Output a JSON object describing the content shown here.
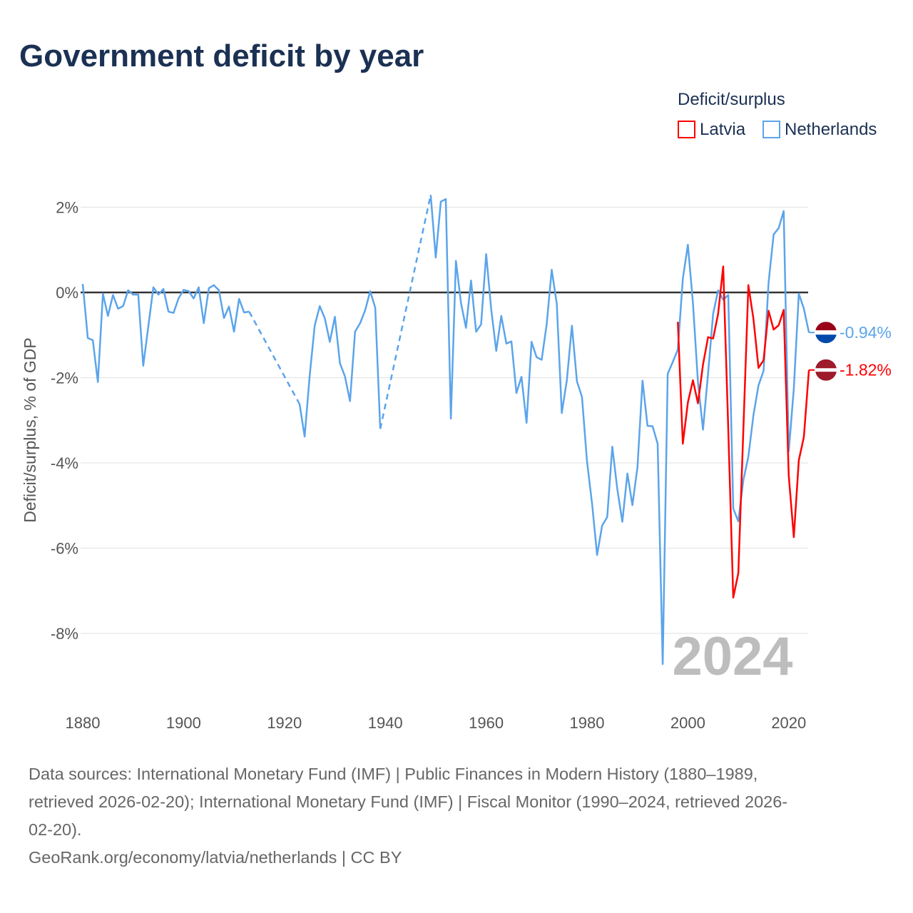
{
  "chart_data": {
    "type": "line",
    "title": "Government deficit by year",
    "xlabel": "",
    "ylabel": "Deficit/surplus, % of GDP",
    "xlim": [
      1880,
      2024
    ],
    "ylim": [
      -9.5,
      2.4
    ],
    "x_ticks": [
      1880,
      1900,
      1920,
      1940,
      1960,
      1980,
      2000,
      2020
    ],
    "x_tick_labels": [
      "1880",
      "1900",
      "1920",
      "1940",
      "1960",
      "1980",
      "2000",
      "2020"
    ],
    "y_ticks": [
      2,
      0,
      -2,
      -4,
      -6,
      -8
    ],
    "y_tick_labels": [
      "2%",
      "0%",
      "-2%",
      "-4%",
      "-6%",
      "-8%"
    ],
    "grid": true,
    "legend_title": "Deficit/surplus",
    "legend_position": "top-right",
    "watermark": "2024",
    "series": [
      {
        "name": "Latvia",
        "color": "#ff0000",
        "end_label": "-1.82%",
        "flag": "latvia-flag",
        "start_year": 1998,
        "values": [
          -0.69,
          -3.55,
          -2.58,
          -2.06,
          -2.6,
          -1.69,
          -1.05,
          -1.08,
          -0.5,
          0.61,
          -3.2,
          -7.16,
          -6.59,
          -3.2,
          0.17,
          -0.62,
          -1.77,
          -1.59,
          -0.43,
          -0.87,
          -0.77,
          -0.41,
          -4.3,
          -5.74,
          -3.94,
          -3.39,
          -1.82
        ]
      },
      {
        "name": "Netherlands",
        "color": "#5ba4eb",
        "end_label": "-0.94%",
        "flag": "netherlands-flag",
        "start_year": 1880,
        "values": [
          0.2,
          -1.07,
          -1.12,
          -2.1,
          -0.03,
          -0.55,
          -0.06,
          -0.38,
          -0.32,
          0.05,
          -0.05,
          -0.05,
          -1.72,
          -0.8,
          0.12,
          -0.05,
          0.08,
          -0.45,
          -0.48,
          -0.14,
          0.06,
          0.03,
          -0.14,
          0.12,
          -0.72,
          0.1,
          0.17,
          0.05,
          -0.6,
          -0.33,
          -0.92,
          -0.15,
          -0.47,
          -0.45,
          null,
          null,
          null,
          null,
          null,
          null,
          null,
          null,
          null,
          -2.62,
          -3.38,
          -1.95,
          -0.78,
          -0.32,
          -0.61,
          -1.16,
          -0.57,
          -1.66,
          -1.97,
          -2.55,
          -0.92,
          -0.72,
          -0.42,
          0.03,
          -0.36,
          -3.2,
          null,
          null,
          null,
          null,
          null,
          null,
          null,
          null,
          null,
          2.29,
          0.82,
          2.13,
          2.19,
          -2.96,
          0.74,
          -0.25,
          -0.83,
          0.28,
          -0.92,
          -0.75,
          0.9,
          -0.4,
          -1.37,
          -0.55,
          -1.2,
          -1.15,
          -2.36,
          -1.98,
          -3.06,
          -1.16,
          -1.52,
          -1.58,
          -0.75,
          0.53,
          -0.27,
          -2.83,
          -2.06,
          -0.78,
          -2.09,
          -2.45,
          -3.97,
          -4.96,
          -6.16,
          -5.47,
          -5.27,
          -3.62,
          -4.61,
          -5.38,
          -4.25,
          -4.99,
          -4.1,
          -2.07,
          -3.13,
          -3.14,
          -3.55,
          -8.72,
          -1.91,
          -1.63,
          -1.34,
          0.32,
          1.12,
          -0.25,
          -2.1,
          -3.22,
          -1.9,
          -0.5,
          0.05,
          -0.17,
          -0.06,
          -5.07,
          -5.37,
          -4.4,
          -3.85,
          -2.88,
          -2.18,
          -1.84,
          0.23,
          1.36,
          1.51,
          1.91,
          -3.73,
          -2.26,
          -0.03,
          -0.38,
          -0.94
        ]
      }
    ]
  },
  "footer": {
    "line1": "Data sources: International Monetary Fund (IMF) | Public Finances in Modern History (1880–1989,",
    "line2": "retrieved 2026-02-20); International Monetary Fund (IMF) | Fiscal Monitor (1990–2024, retrieved 2026-",
    "line3": "02-20).",
    "line4": "GeoRank.org/economy/latvia/netherlands | CC BY"
  }
}
